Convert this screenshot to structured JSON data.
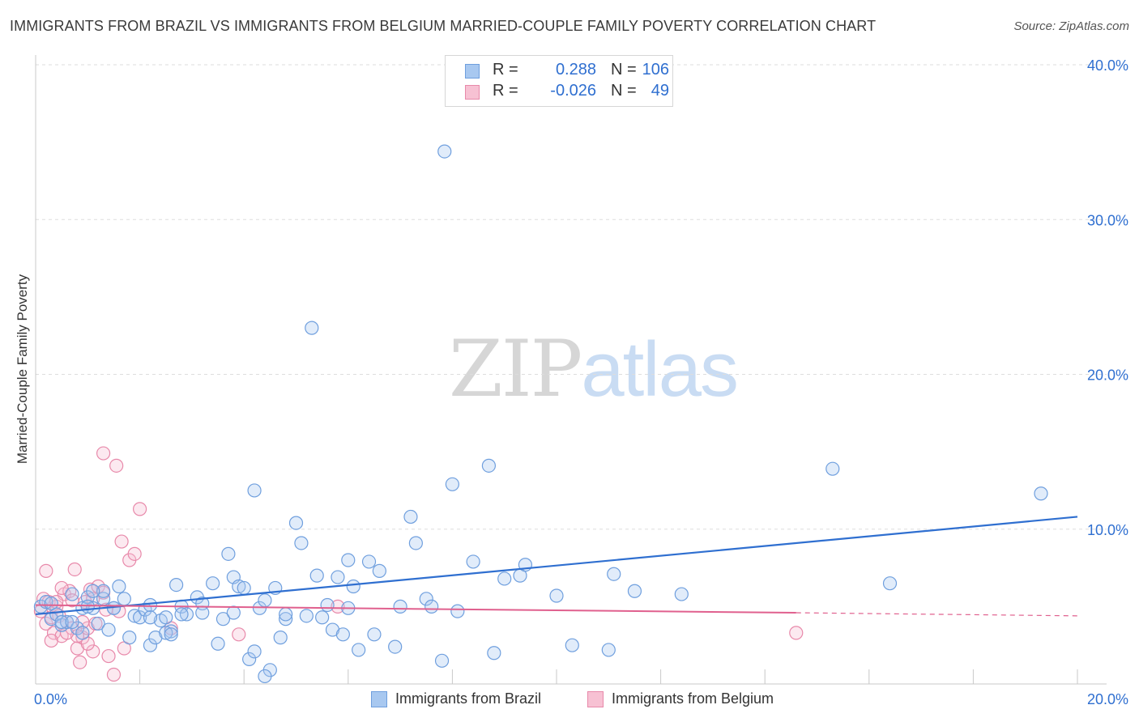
{
  "title": "IMMIGRANTS FROM BRAZIL VS IMMIGRANTS FROM BELGIUM MARRIED-COUPLE FAMILY POVERTY CORRELATION CHART",
  "source": "Source: ZipAtlas.com",
  "watermark": {
    "zip": "ZIP",
    "atlas": "atlas"
  },
  "legend": {
    "rows": [
      {
        "r_label": "R =",
        "r_value": "0.288",
        "n_label": "N =",
        "n_value": "106",
        "color": "#a8c8f0",
        "border": "#6f9fde"
      },
      {
        "r_label": "R =",
        "r_value": "-0.026",
        "n_label": "N =",
        "n_value": "49",
        "color": "#f7c1d3",
        "border": "#e889aa"
      }
    ]
  },
  "bottom_legend": [
    {
      "label": "Immigrants from Brazil",
      "color": "#a8c8f0",
      "border": "#6f9fde"
    },
    {
      "label": "Immigrants from Belgium",
      "color": "#f7c1d3",
      "border": "#e889aa"
    }
  ],
  "colors": {
    "blue": "#2f6fd0",
    "blue_fill": "rgba(168,200,240,0.35)",
    "blue_stroke": "#6f9fde",
    "pink": "#e0608e",
    "pink_fill": "rgba(247,193,211,0.35)",
    "pink_stroke": "#e889aa",
    "axis_text": "#2f6fd0",
    "grid": "#dddddd"
  },
  "chart_data": {
    "type": "scatter",
    "title": "IMMIGRANTS FROM BRAZIL VS IMMIGRANTS FROM BELGIUM MARRIED-COUPLE FAMILY POVERTY CORRELATION CHART",
    "xlabel": "",
    "ylabel": "Married-Couple Family Poverty",
    "xlim": [
      0,
      20
    ],
    "ylim": [
      0,
      40
    ],
    "x_tick_labels": [
      {
        "value": 0,
        "label": "0.0%"
      },
      {
        "value": 20,
        "label": "20.0%"
      }
    ],
    "y_tick_labels": [
      {
        "value": 10,
        "label": "10.0%"
      },
      {
        "value": 20,
        "label": "20.0%"
      },
      {
        "value": 30,
        "label": "30.0%"
      },
      {
        "value": 40,
        "label": "40.0%"
      }
    ],
    "x_grid": [
      2,
      4,
      6,
      8,
      10,
      12,
      14,
      16,
      18,
      20
    ],
    "y_grid": [
      10,
      20,
      30,
      40
    ],
    "series": [
      {
        "name": "Immigrants from Brazil",
        "R": 0.288,
        "N": 106,
        "trend": {
          "x0": 0,
          "y0": 4.5,
          "x1": 20,
          "y1": 10.8
        },
        "points": [
          [
            0.1,
            5.0
          ],
          [
            0.2,
            5.3
          ],
          [
            0.3,
            4.2
          ],
          [
            0.4,
            4.5
          ],
          [
            0.5,
            3.8
          ],
          [
            0.6,
            4.0
          ],
          [
            0.7,
            5.8
          ],
          [
            0.8,
            3.6
          ],
          [
            0.9,
            4.9
          ],
          [
            1.0,
            5.6
          ],
          [
            1.1,
            4.9
          ],
          [
            1.2,
            3.9
          ],
          [
            1.3,
            5.5
          ],
          [
            1.4,
            3.5
          ],
          [
            1.5,
            4.9
          ],
          [
            1.6,
            6.3
          ],
          [
            1.8,
            3.0
          ],
          [
            1.9,
            4.4
          ],
          [
            2.2,
            2.5
          ],
          [
            2.0,
            4.3
          ],
          [
            2.1,
            4.8
          ],
          [
            2.2,
            5.1
          ],
          [
            2.3,
            3.0
          ],
          [
            2.4,
            4.1
          ],
          [
            2.5,
            4.3
          ],
          [
            2.6,
            3.4
          ],
          [
            2.7,
            6.4
          ],
          [
            2.8,
            5.0
          ],
          [
            2.9,
            4.5
          ],
          [
            3.1,
            5.6
          ],
          [
            3.2,
            5.2
          ],
          [
            3.4,
            6.5
          ],
          [
            3.5,
            2.6
          ],
          [
            3.6,
            4.2
          ],
          [
            3.7,
            8.4
          ],
          [
            3.8,
            6.9
          ],
          [
            3.9,
            6.3
          ],
          [
            4.0,
            6.2
          ],
          [
            4.1,
            1.6
          ],
          [
            4.2,
            2.1
          ],
          [
            4.3,
            4.9
          ],
          [
            4.4,
            5.4
          ],
          [
            4.5,
            0.9
          ],
          [
            4.6,
            6.2
          ],
          [
            4.7,
            3.0
          ],
          [
            4.8,
            4.2
          ],
          [
            5.0,
            10.4
          ],
          [
            5.1,
            9.1
          ],
          [
            5.2,
            4.4
          ],
          [
            5.4,
            7.0
          ],
          [
            5.5,
            4.3
          ],
          [
            5.6,
            5.1
          ],
          [
            5.7,
            3.5
          ],
          [
            5.8,
            6.9
          ],
          [
            6.0,
            4.9
          ],
          [
            6.1,
            6.3
          ],
          [
            6.2,
            2.2
          ],
          [
            6.4,
            7.9
          ],
          [
            6.5,
            3.2
          ],
          [
            6.6,
            7.3
          ],
          [
            6.9,
            2.4
          ],
          [
            7.0,
            5.0
          ],
          [
            7.2,
            10.8
          ],
          [
            7.3,
            9.1
          ],
          [
            7.5,
            5.5
          ],
          [
            7.6,
            5.0
          ],
          [
            7.8,
            1.5
          ],
          [
            8.1,
            4.7
          ],
          [
            8.4,
            7.9
          ],
          [
            8.8,
            2.0
          ],
          [
            8.7,
            14.1
          ],
          [
            9.0,
            6.8
          ],
          [
            9.3,
            7.0
          ],
          [
            9.4,
            7.7
          ],
          [
            10.0,
            5.7
          ],
          [
            10.3,
            2.5
          ],
          [
            11.0,
            2.2
          ],
          [
            11.1,
            7.1
          ],
          [
            11.5,
            6.0
          ],
          [
            12.4,
            5.8
          ],
          [
            15.3,
            13.9
          ],
          [
            16.4,
            6.5
          ],
          [
            19.3,
            12.3
          ],
          [
            4.8,
            4.5
          ],
          [
            3.2,
            4.6
          ],
          [
            2.2,
            4.3
          ],
          [
            0.3,
            5.2
          ],
          [
            1.0,
            5.0
          ],
          [
            1.3,
            6.0
          ],
          [
            2.8,
            4.5
          ],
          [
            4.4,
            0.5
          ],
          [
            3.8,
            4.6
          ],
          [
            5.9,
            3.2
          ],
          [
            0.5,
            4.0
          ],
          [
            1.7,
            5.5
          ],
          [
            2.5,
            3.3
          ],
          [
            0.9,
            3.3
          ],
          [
            1.5,
            4.9
          ],
          [
            0.7,
            4.0
          ],
          [
            2.6,
            3.2
          ],
          [
            7.85,
            34.4
          ],
          [
            5.3,
            23.0
          ],
          [
            8.0,
            12.9
          ],
          [
            4.2,
            12.5
          ],
          [
            6.0,
            8.0
          ],
          [
            1.1,
            6.0
          ]
        ]
      },
      {
        "name": "Immigrants from Belgium",
        "R": -0.026,
        "N": 49,
        "trend": {
          "x0": 0,
          "y0": 5.1,
          "x1": 14.6,
          "y1": 4.6,
          "dash_to": 20,
          "dash_y": 4.4
        },
        "points": [
          [
            0.1,
            4.7
          ],
          [
            0.15,
            5.5
          ],
          [
            0.2,
            3.9
          ],
          [
            0.25,
            5.3
          ],
          [
            0.3,
            4.3
          ],
          [
            0.35,
            3.3
          ],
          [
            0.4,
            5.0
          ],
          [
            0.45,
            4.4
          ],
          [
            0.5,
            3.1
          ],
          [
            0.55,
            5.8
          ],
          [
            0.6,
            4.0
          ],
          [
            0.65,
            6.0
          ],
          [
            0.7,
            3.6
          ],
          [
            0.75,
            7.4
          ],
          [
            0.8,
            2.3
          ],
          [
            0.85,
            1.4
          ],
          [
            0.9,
            3.0
          ],
          [
            0.95,
            5.3
          ],
          [
            1.0,
            3.6
          ],
          [
            1.05,
            6.1
          ],
          [
            1.1,
            2.1
          ],
          [
            1.15,
            3.9
          ],
          [
            1.2,
            6.3
          ],
          [
            1.3,
            5.9
          ],
          [
            1.35,
            4.8
          ],
          [
            1.4,
            1.8
          ],
          [
            1.5,
            0.6
          ],
          [
            1.55,
            14.1
          ],
          [
            1.6,
            4.7
          ],
          [
            1.65,
            9.2
          ],
          [
            1.7,
            2.3
          ],
          [
            1.8,
            8.0
          ],
          [
            1.9,
            8.4
          ],
          [
            2.0,
            11.3
          ],
          [
            0.2,
            7.3
          ],
          [
            0.5,
            6.2
          ],
          [
            1.3,
            14.9
          ],
          [
            0.8,
            3.1
          ],
          [
            0.3,
            2.8
          ],
          [
            0.4,
            5.3
          ],
          [
            0.6,
            3.3
          ],
          [
            1.1,
            5.5
          ],
          [
            2.6,
            3.6
          ],
          [
            3.9,
            3.2
          ],
          [
            5.8,
            5.0
          ],
          [
            14.6,
            3.3
          ],
          [
            1.0,
            2.6
          ],
          [
            0.9,
            4.0
          ],
          [
            0.7,
            5.4
          ]
        ]
      }
    ]
  }
}
